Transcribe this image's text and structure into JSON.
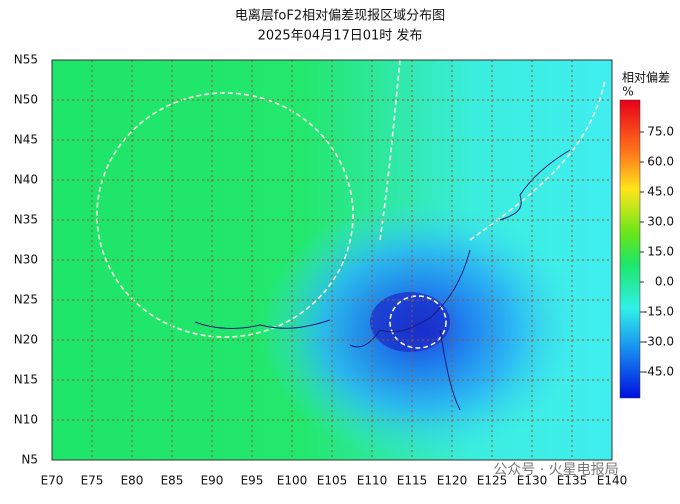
{
  "title": "电离层foF2相对偏差现报区域分布图",
  "subtitle": "2025年04月17日01时 发布",
  "map": {
    "lat_range": [
      55,
      5
    ],
    "lon_range": [
      70,
      140
    ],
    "lat_ticks": [
      {
        "value": 55,
        "label": "N55"
      },
      {
        "value": 50,
        "label": "N50"
      },
      {
        "value": 45,
        "label": "N45"
      },
      {
        "value": 40,
        "label": "N40"
      },
      {
        "value": 35,
        "label": "N35"
      },
      {
        "value": 30,
        "label": "N30"
      },
      {
        "value": 25,
        "label": "N25"
      },
      {
        "value": 20,
        "label": "N20"
      },
      {
        "value": 15,
        "label": "N15"
      },
      {
        "value": 10,
        "label": "N10"
      },
      {
        "value": 5,
        "label": "N5"
      }
    ],
    "lon_ticks": [
      {
        "value": 70,
        "label": "E70"
      },
      {
        "value": 75,
        "label": "E75"
      },
      {
        "value": 80,
        "label": "E80"
      },
      {
        "value": 85,
        "label": "E85"
      },
      {
        "value": 90,
        "label": "E90"
      },
      {
        "value": 95,
        "label": "E95"
      },
      {
        "value": 100,
        "label": "E100"
      },
      {
        "value": 105,
        "label": "E105"
      },
      {
        "value": 110,
        "label": "E110"
      },
      {
        "value": 115,
        "label": "E115"
      },
      {
        "value": 120,
        "label": "E120"
      },
      {
        "value": 125,
        "label": "E125"
      },
      {
        "value": 130,
        "label": "E130"
      },
      {
        "value": 135,
        "label": "E135"
      },
      {
        "value": 140,
        "label": "E140"
      }
    ]
  },
  "colorbar": {
    "title": "相对偏差",
    "unit": "%",
    "range": [
      -58,
      91
    ],
    "ticks": [
      {
        "value": 75,
        "label": "75.0"
      },
      {
        "value": 60,
        "label": "60.0"
      },
      {
        "value": 45,
        "label": "45.0"
      },
      {
        "value": 30,
        "label": "30.0"
      },
      {
        "value": 15,
        "label": "15.0"
      },
      {
        "value": 0,
        "label": "0.0"
      },
      {
        "value": -15,
        "label": "-15.0"
      },
      {
        "value": -30,
        "label": "-30.0"
      },
      {
        "value": -45,
        "label": "-45.0"
      }
    ]
  },
  "watermark": "公众号 · 火星电报局"
}
